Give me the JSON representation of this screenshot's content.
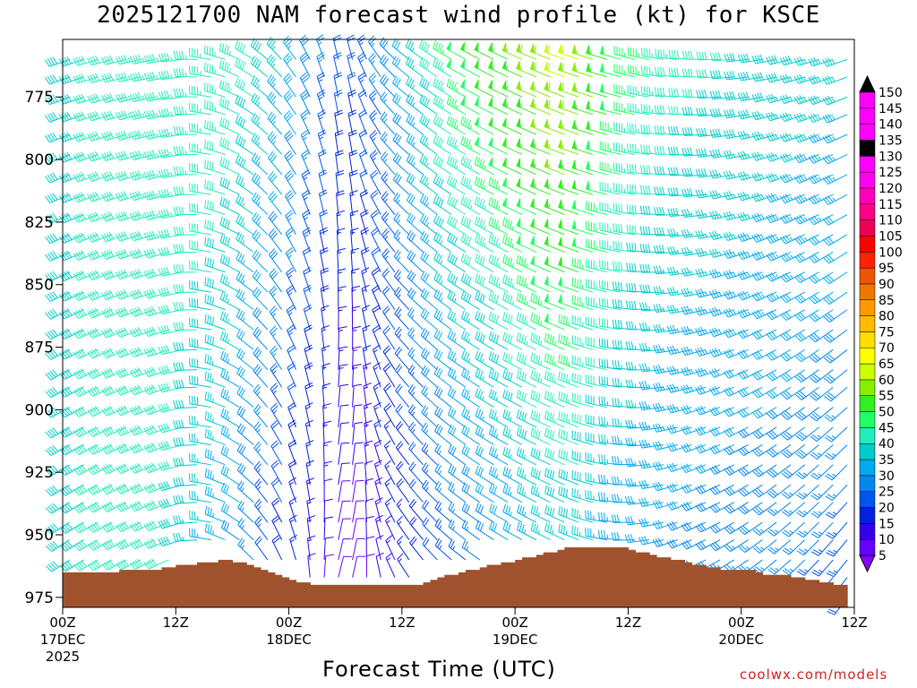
{
  "title": "2025121700 NAM forecast wind profile (kt) for KSCE",
  "credit": "coolwx.com/models",
  "colors": {
    "terrain": "#a0522d",
    "speed_bins": [
      "#8800ff",
      "#6600ff",
      "#3300ee",
      "#0022dd",
      "#0055ee",
      "#0088ee",
      "#00aaee",
      "#00cccc",
      "#22eebb",
      "#22ff66",
      "#33ee22",
      "#88ee00",
      "#ccff00",
      "#ffff00",
      "#ffdd00",
      "#ffbb00",
      "#ff9900",
      "#ee7700",
      "#ee5500",
      "#ff2200",
      "#ff0000",
      "#ee0055",
      "#ff0088",
      "#ff00bb",
      "#ff00ee",
      "#ff00ff",
      "#000000"
    ]
  },
  "chart_data": {
    "type": "wind_barbs",
    "title": "2025121700 NAM forecast wind profile (kt) for KSCE",
    "xlabel": "Forecast Time (UTC)",
    "ylabel": "",
    "x_range_hours": [
      0,
      84
    ],
    "ylim": [
      979,
      752
    ],
    "x_ticks": [
      {
        "hour": 0,
        "label": "00Z",
        "date": "17DEC",
        "year": "2025"
      },
      {
        "hour": 12,
        "label": "12Z",
        "date": "",
        "year": ""
      },
      {
        "hour": 24,
        "label": "00Z",
        "date": "18DEC",
        "year": ""
      },
      {
        "hour": 36,
        "label": "12Z",
        "date": "",
        "year": ""
      },
      {
        "hour": 48,
        "label": "00Z",
        "date": "19DEC",
        "year": ""
      },
      {
        "hour": 60,
        "label": "12Z",
        "date": "",
        "year": ""
      },
      {
        "hour": 72,
        "label": "00Z",
        "date": "20DEC",
        "year": ""
      },
      {
        "hour": 84,
        "label": "12Z",
        "date": "",
        "year": ""
      }
    ],
    "y_ticks": [
      775,
      800,
      825,
      850,
      875,
      900,
      925,
      950,
      975
    ],
    "levels": [
      760,
      767,
      775,
      782,
      790,
      798,
      806,
      814,
      822,
      830,
      837,
      845,
      853,
      860,
      868,
      876,
      884,
      891,
      899,
      907,
      914,
      922,
      930,
      937,
      945,
      952,
      960,
      967,
      975
    ],
    "colorbar": [
      5,
      10,
      15,
      20,
      25,
      30,
      35,
      40,
      45,
      50,
      55,
      60,
      65,
      70,
      75,
      80,
      85,
      90,
      95,
      100,
      105,
      110,
      115,
      120,
      125,
      130,
      135,
      140,
      145,
      150
    ],
    "surface_pressure": [
      965,
      965,
      965,
      965,
      965,
      965,
      965,
      965,
      964,
      964,
      964,
      964,
      964,
      964,
      963,
      963,
      962,
      962,
      962,
      961,
      961,
      961,
      960,
      960,
      961,
      961,
      962,
      963,
      964,
      965,
      966,
      967,
      968,
      969,
      969,
      970,
      970,
      970,
      970,
      970,
      970,
      970,
      970,
      970,
      970,
      970,
      970,
      970,
      970,
      970,
      970,
      969,
      968,
      967,
      966,
      966,
      965,
      964,
      964,
      963,
      962,
      962,
      961,
      961,
      960,
      959,
      959,
      958,
      957,
      957,
      956,
      955,
      955,
      955,
      955,
      955,
      955,
      955,
      955,
      955,
      956,
      957,
      957,
      958,
      959,
      959,
      960,
      960,
      961,
      962,
      962,
      963,
      963,
      964,
      964,
      964,
      964,
      964,
      965,
      966,
      966,
      966,
      966,
      967,
      967,
      968,
      968,
      969,
      969,
      970,
      970
    ],
    "surface_hours": [
      0,
      0.75,
      1.5,
      2.25,
      3,
      3.75,
      4.5,
      5.25,
      6,
      6.75,
      7.5,
      8.25,
      9,
      9.75,
      10.5,
      11.25,
      12,
      12.75,
      13.5,
      14.25,
      15,
      15.75,
      16.5,
      17.25,
      18,
      18.75,
      19.5,
      20.25,
      21,
      21.75,
      22.5,
      23.25,
      24,
      24.75,
      25.5,
      26.25,
      27,
      27.75,
      28.5,
      29.25,
      30,
      30.75,
      31.5,
      32.25,
      33,
      33.75,
      34.5,
      35.25,
      36,
      36.75,
      37.5,
      38.25,
      39,
      39.75,
      40.5,
      41.25,
      42,
      42.75,
      43.5,
      44.25,
      45,
      45.75,
      46.5,
      47.25,
      48,
      48.75,
      49.5,
      50.25,
      51,
      51.75,
      52.5,
      53.25,
      54,
      54.75,
      55.5,
      56.25,
      57,
      57.75,
      58.5,
      59.25,
      60,
      60.75,
      61.5,
      62.25,
      63,
      63.75,
      64.5,
      65.25,
      66,
      66.75,
      67.5,
      68.25,
      69,
      69.75,
      70.5,
      71.25,
      72,
      72.75,
      73.5,
      74.25,
      75,
      75.75,
      76.5,
      77.25,
      78,
      78.75,
      79.5,
      80.25,
      81,
      81.75,
      82.5,
      83.25,
      84
    ],
    "wind_profiles": [
      {
        "hour": 0,
        "low": {
          "dir": 235,
          "spd": 38
        },
        "high": {
          "dir": 250,
          "spd": 38
        }
      },
      {
        "hour": 6,
        "low": {
          "dir": 240,
          "spd": 42
        },
        "high": {
          "dir": 255,
          "spd": 42
        }
      },
      {
        "hour": 12,
        "low": {
          "dir": 245,
          "spd": 40
        },
        "high": {
          "dir": 260,
          "spd": 44
        }
      },
      {
        "hour": 18,
        "low": {
          "dir": 300,
          "spd": 30
        },
        "high": {
          "dir": 290,
          "spd": 45
        }
      },
      {
        "hour": 24,
        "low": {
          "dir": 340,
          "spd": 15
        },
        "high": {
          "dir": 320,
          "spd": 35
        }
      },
      {
        "hour": 30,
        "low": {
          "dir": 20,
          "spd": 6
        },
        "high": {
          "dir": 350,
          "spd": 20
        }
      },
      {
        "hour": 36,
        "low": {
          "dir": 330,
          "spd": 14
        },
        "high": {
          "dir": 310,
          "spd": 30
        }
      },
      {
        "hour": 42,
        "low": {
          "dir": 310,
          "spd": 22
        },
        "high": {
          "dir": 300,
          "spd": 48
        }
      },
      {
        "hour": 48,
        "low": {
          "dir": 300,
          "spd": 28
        },
        "high": {
          "dir": 295,
          "spd": 55
        }
      },
      {
        "hour": 54,
        "low": {
          "dir": 295,
          "spd": 35
        },
        "high": {
          "dir": 290,
          "spd": 62
        }
      },
      {
        "hour": 60,
        "low": {
          "dir": 270,
          "spd": 30
        },
        "high": {
          "dir": 285,
          "spd": 48
        }
      },
      {
        "hour": 66,
        "low": {
          "dir": 245,
          "spd": 28
        },
        "high": {
          "dir": 275,
          "spd": 42
        }
      },
      {
        "hour": 72,
        "low": {
          "dir": 235,
          "spd": 26
        },
        "high": {
          "dir": 265,
          "spd": 40
        }
      },
      {
        "hour": 78,
        "low": {
          "dir": 225,
          "spd": 25
        },
        "high": {
          "dir": 255,
          "spd": 38
        }
      },
      {
        "hour": 84,
        "low": {
          "dir": 215,
          "spd": 22
        },
        "high": {
          "dir": 250,
          "spd": 36
        }
      }
    ],
    "legend_position": "right"
  }
}
